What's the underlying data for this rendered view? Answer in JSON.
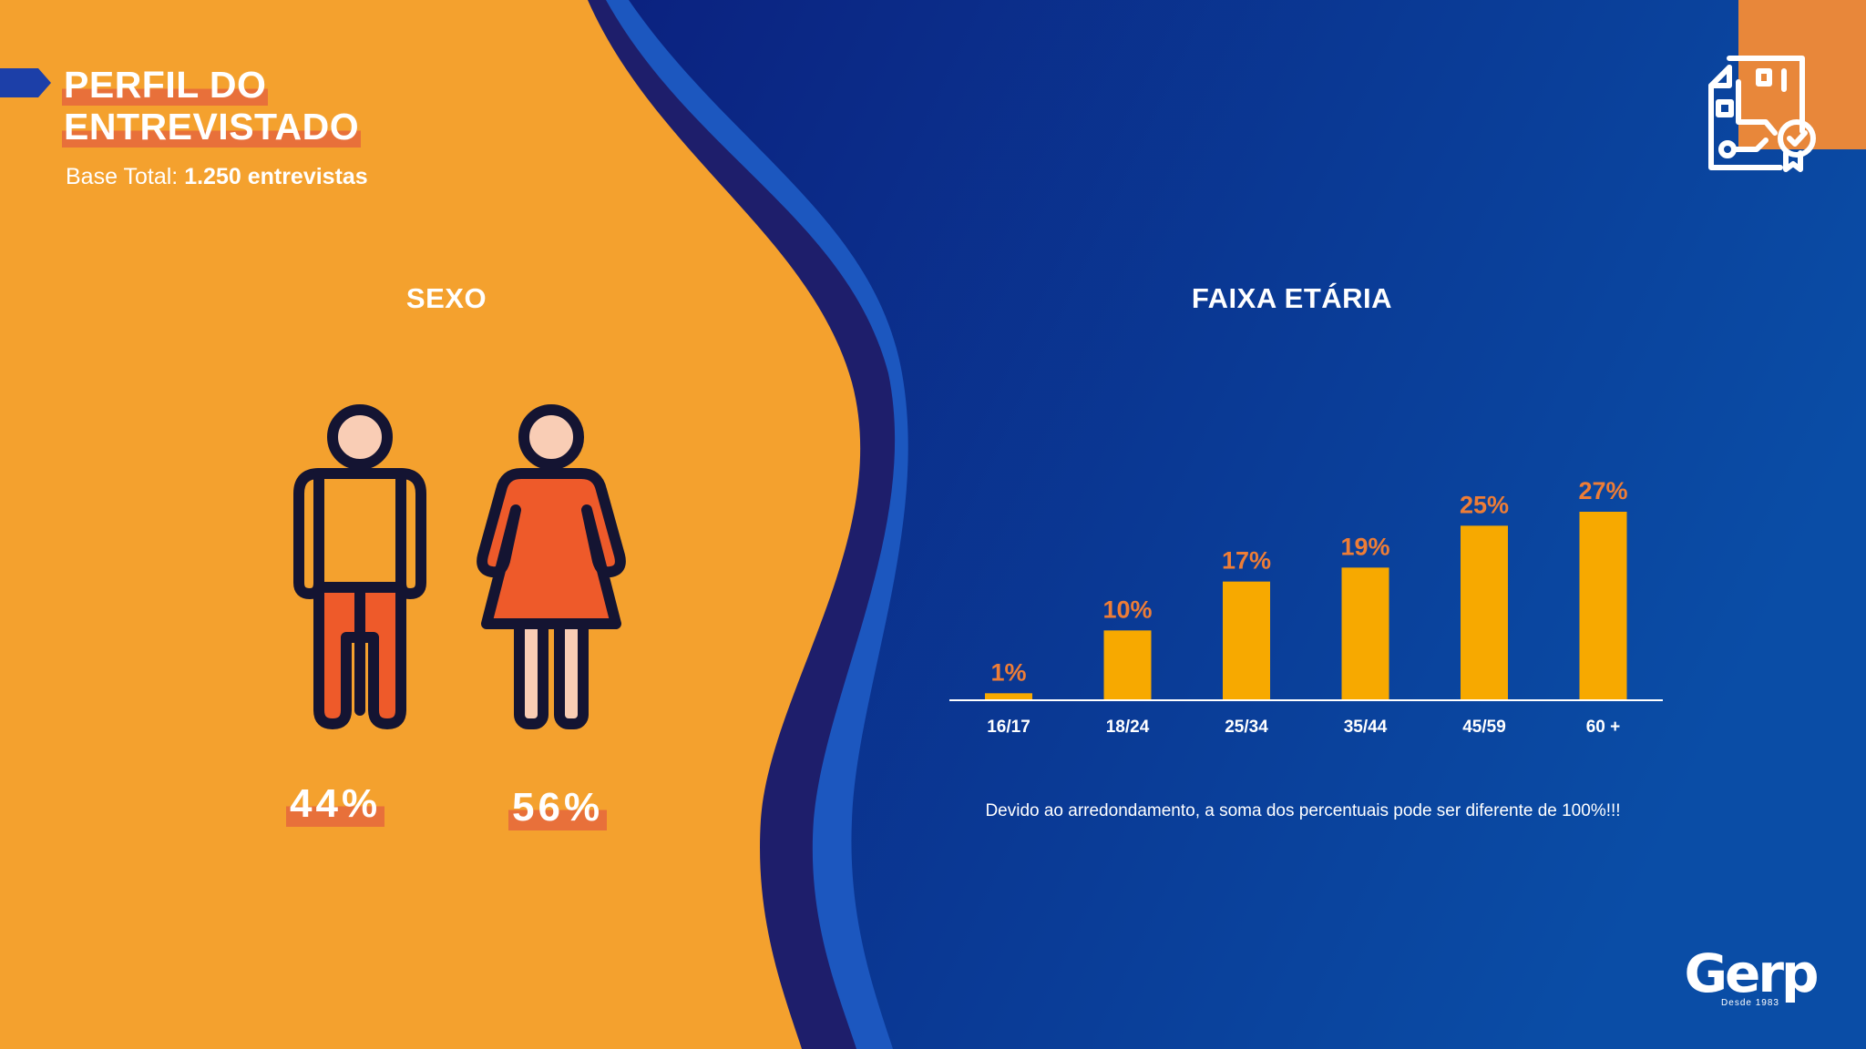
{
  "header": {
    "title_line1": "PERFIL DO",
    "title_line2": "ENTREVISTADO",
    "base_label": "Base Total:",
    "base_value": "1.250 entrevistas"
  },
  "sexo": {
    "title": "SEXO",
    "male_pct": "44%",
    "female_pct": "56%"
  },
  "faixa": {
    "title": "FAIXA ETÁRIA",
    "footnote": "Devido ao arredondamento, a soma dos percentuais pode ser diferente de 100%!!!"
  },
  "logo": {
    "word": "Gerp",
    "tagline": "Desde 1983"
  },
  "colors": {
    "orange_bg": "#F4A12E",
    "blue_bg": "#0A2A8C",
    "bar": "#F7A900",
    "bar_label": "#EE7D36",
    "accent": "#E8703A"
  },
  "icons": [
    "document-check-icon",
    "male-figure-icon",
    "female-figure-icon",
    "title-arrow-icon"
  ],
  "chart_data": {
    "type": "bar",
    "title": "FAIXA ETÁRIA",
    "categories": [
      "16/17",
      "18/24",
      "25/34",
      "35/44",
      "45/59",
      "60 +"
    ],
    "values": [
      1,
      10,
      17,
      19,
      25,
      27
    ],
    "value_labels": [
      "1%",
      "10%",
      "17%",
      "19%",
      "25%",
      "27%"
    ],
    "ylim": [
      0,
      30
    ],
    "grid": false,
    "legend": "none"
  }
}
